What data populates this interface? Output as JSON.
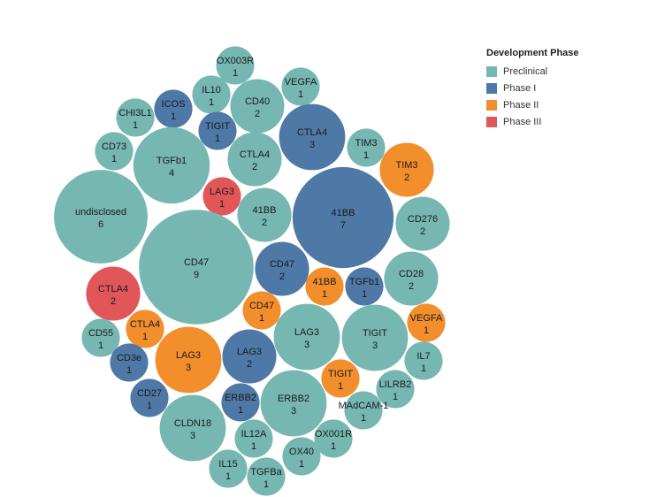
{
  "colors": {
    "Preclinical": "#76b7b2",
    "Phase I": "#4e79a7",
    "Phase II": "#f28e2b",
    "Phase III": "#e15759"
  },
  "legend": {
    "title": "Development Phase",
    "items": [
      "Preclinical",
      "Phase I",
      "Phase II",
      "Phase III"
    ]
  },
  "chart_data": {
    "type": "bubble",
    "size_field": "count",
    "color_field": "Development Phase",
    "bubbles": [
      {
        "target": "OX003R",
        "count": 1,
        "phase": "Preclinical"
      },
      {
        "target": "VEGFA",
        "count": 1,
        "phase": "Preclinical"
      },
      {
        "target": "IL10",
        "count": 1,
        "phase": "Preclinical"
      },
      {
        "target": "CD40",
        "count": 2,
        "phase": "Preclinical"
      },
      {
        "target": "ICOS",
        "count": 1,
        "phase": "Phase I"
      },
      {
        "target": "CHI3L1",
        "count": 1,
        "phase": "Preclinical"
      },
      {
        "target": "CTLA4",
        "count": 3,
        "phase": "Phase I"
      },
      {
        "target": "TIGIT",
        "count": 1,
        "phase": "Phase I"
      },
      {
        "target": "TIM3",
        "count": 1,
        "phase": "Preclinical"
      },
      {
        "target": "CD73",
        "count": 1,
        "phase": "Preclinical"
      },
      {
        "target": "TGFb1",
        "count": 4,
        "phase": "Preclinical"
      },
      {
        "target": "CTLA4",
        "count": 2,
        "phase": "Preclinical"
      },
      {
        "target": "TIM3",
        "count": 2,
        "phase": "Phase II"
      },
      {
        "target": "LAG3",
        "count": 1,
        "phase": "Phase III"
      },
      {
        "target": "undisclosed",
        "count": 6,
        "phase": "Preclinical"
      },
      {
        "target": "41BB",
        "count": 2,
        "phase": "Preclinical"
      },
      {
        "target": "41BB",
        "count": 7,
        "phase": "Phase I"
      },
      {
        "target": "CD276",
        "count": 2,
        "phase": "Preclinical"
      },
      {
        "target": "CD47",
        "count": 9,
        "phase": "Preclinical"
      },
      {
        "target": "CD47",
        "count": 2,
        "phase": "Phase I"
      },
      {
        "target": "CD28",
        "count": 2,
        "phase": "Preclinical"
      },
      {
        "target": "CTLA4",
        "count": 2,
        "phase": "Phase III"
      },
      {
        "target": "41BB",
        "count": 1,
        "phase": "Phase II"
      },
      {
        "target": "TGFb1",
        "count": 1,
        "phase": "Phase I"
      },
      {
        "target": "CD47",
        "count": 1,
        "phase": "Phase II"
      },
      {
        "target": "VEGFA",
        "count": 1,
        "phase": "Phase II"
      },
      {
        "target": "CTLA4",
        "count": 1,
        "phase": "Phase II"
      },
      {
        "target": "LAG3",
        "count": 3,
        "phase": "Preclinical"
      },
      {
        "target": "TIGIT",
        "count": 3,
        "phase": "Preclinical"
      },
      {
        "target": "CD55",
        "count": 1,
        "phase": "Preclinical"
      },
      {
        "target": "IL7",
        "count": 1,
        "phase": "Preclinical"
      },
      {
        "target": "CD3e",
        "count": 1,
        "phase": "Phase I"
      },
      {
        "target": "LAG3",
        "count": 3,
        "phase": "Phase II"
      },
      {
        "target": "LAG3",
        "count": 2,
        "phase": "Phase I"
      },
      {
        "target": "TIGIT",
        "count": 1,
        "phase": "Phase II"
      },
      {
        "target": "LILRB2",
        "count": 1,
        "phase": "Preclinical"
      },
      {
        "target": "CD27",
        "count": 1,
        "phase": "Phase I"
      },
      {
        "target": "ERBB2",
        "count": 1,
        "phase": "Phase I"
      },
      {
        "target": "ERBB2",
        "count": 3,
        "phase": "Preclinical"
      },
      {
        "target": "MAdCAM-1",
        "count": 1,
        "phase": "Preclinical"
      },
      {
        "target": "CLDN18",
        "count": 3,
        "phase": "Preclinical"
      },
      {
        "target": "IL12A",
        "count": 1,
        "phase": "Preclinical"
      },
      {
        "target": "OX001R",
        "count": 1,
        "phase": "Preclinical"
      },
      {
        "target": "OX40",
        "count": 1,
        "phase": "Preclinical"
      },
      {
        "target": "IL15",
        "count": 1,
        "phase": "Preclinical"
      },
      {
        "target": "TGFBa",
        "count": 1,
        "phase": "Preclinical"
      }
    ]
  }
}
